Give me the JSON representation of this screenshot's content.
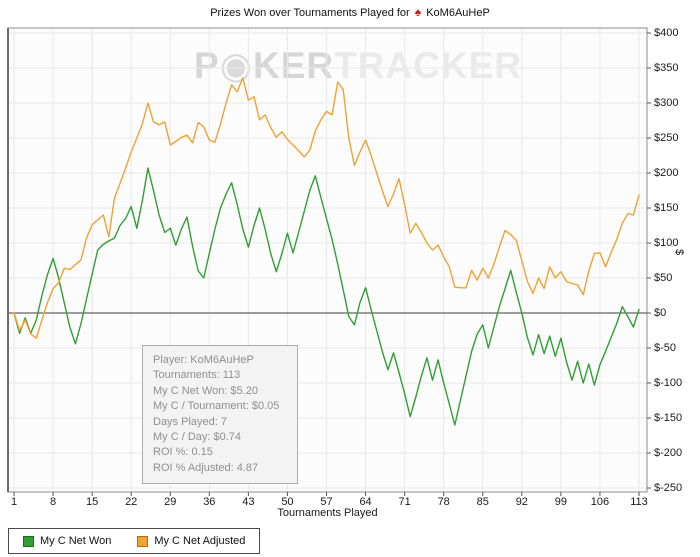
{
  "title": {
    "prefix": "Prizes Won over Tournaments Played for",
    "player": "KoM6AuHeP",
    "suit_icon": "♠"
  },
  "watermark": {
    "p1": "P",
    "chip": "◉",
    "p2": "KER",
    "p3": "TRACKER"
  },
  "chart_data": {
    "type": "line",
    "title": "Prizes Won over Tournaments Played for KoM6AuHeP",
    "xlabel": "Tournaments Played",
    "ylabel": "$",
    "x_range": [
      1,
      113
    ],
    "x_ticks": [
      1,
      8,
      15,
      22,
      29,
      36,
      43,
      50,
      57,
      64,
      71,
      78,
      85,
      92,
      99,
      106,
      113
    ],
    "ylim": [
      -250,
      400
    ],
    "y_tick_step": 50,
    "grid": true,
    "legend_position": "bottom-left",
    "series": [
      {
        "name": "My C Net Won",
        "color": "#2f9e33",
        "swatch_border": "#1c6b1f",
        "values": [
          0,
          -29,
          -7,
          -29,
          -10,
          25,
          55,
          78,
          50,
          15,
          -20,
          -44,
          -15,
          20,
          55,
          90,
          98,
          103,
          107,
          125,
          135,
          152,
          121,
          160,
          207,
          175,
          140,
          115,
          121,
          97,
          120,
          137,
          95,
          60,
          50,
          85,
          120,
          150,
          170,
          186,
          155,
          120,
          94,
          125,
          150,
          120,
          85,
          59,
          85,
          114,
          86,
          115,
          145,
          175,
          196,
          165,
          135,
          105,
          70,
          33,
          -5,
          -17,
          15,
          36,
          5,
          -25,
          -55,
          -81,
          -57,
          -85,
          -115,
          -148,
          -120,
          -90,
          -64,
          -96,
          -67,
          -100,
          -130,
          -160,
          -125,
          -90,
          -55,
          -30,
          -17,
          -50,
          -20,
          10,
          35,
          61,
          30,
          0,
          -35,
          -60,
          -31,
          -58,
          -33,
          -62,
          -36,
          -70,
          -96,
          -69,
          -100,
          -73,
          -103,
          -74,
          -55,
          -35,
          -15,
          9,
          -5,
          -20,
          5.2
        ]
      },
      {
        "name": "My C Net Adjusted",
        "color": "#f2a133",
        "swatch_border": "#a86f14",
        "values": [
          0,
          -25,
          -10,
          -30,
          -36,
          -10,
          15,
          35,
          43,
          64,
          62,
          69,
          76,
          107,
          126,
          133,
          140,
          109,
          164,
          185,
          207,
          230,
          250,
          270,
          300,
          273,
          269,
          273,
          240,
          245,
          251,
          254,
          243,
          272,
          266,
          247,
          244,
          270,
          300,
          326,
          316,
          336,
          304,
          309,
          276,
          283,
          265,
          251,
          259,
          248,
          240,
          232,
          223,
          233,
          260,
          276,
          288,
          283,
          330,
          319,
          250,
          211,
          230,
          247,
          225,
          200,
          175,
          152,
          170,
          192,
          155,
          114,
          128,
          115,
          100,
          90,
          97,
          80,
          66,
          37,
          36,
          36,
          61,
          47,
          64,
          50,
          70,
          95,
          118,
          112,
          104,
          75,
          45,
          28,
          50,
          35,
          66,
          50,
          59,
          45,
          42,
          40,
          26,
          60,
          85,
          86,
          66,
          86,
          105,
          128,
          142,
          140,
          168.8
        ]
      }
    ]
  },
  "tooltip": {
    "lines": [
      "Player: KoM6AuHeP",
      "Tournaments: 113",
      "My C Net Won: $5.20",
      "My C / Tournament: $0.05",
      "Days Played: 7",
      "My C / Day: $0.74",
      "ROI %: 0.15",
      "ROI % Adjusted: 4.87"
    ]
  },
  "legend": {
    "items": [
      {
        "label": "My C Net Won",
        "color": "#2f9e33",
        "border": "#1c6b1f"
      },
      {
        "label": "My C Net Adjusted",
        "color": "#f2a133",
        "border": "#a86f14"
      }
    ]
  },
  "colors": {
    "plot_bg": "#fcfcfc",
    "grid": "#e9e9e9",
    "frame": "#8c8c8c",
    "frame_left": "#6b6b6b",
    "zero_line": "#3c3c3c",
    "tick": "#555555",
    "watermark_dark": "#d6d6d6",
    "watermark_light": "#eaeaea",
    "suit": "#d01818"
  }
}
